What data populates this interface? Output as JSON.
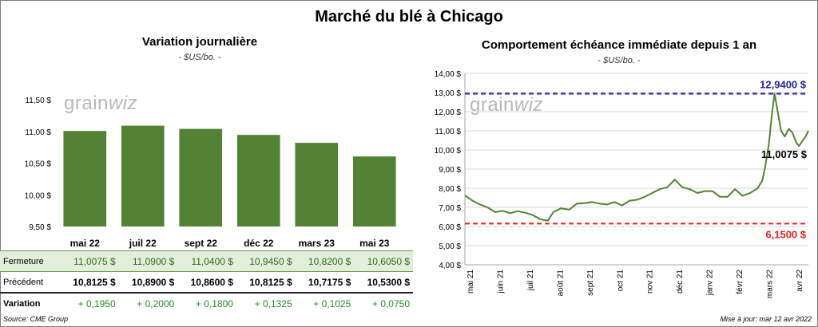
{
  "title": "Marché du blé à Chicago",
  "left_panel": {
    "title": "Variation journalière",
    "subtitle": "- $US/bo. -",
    "logo": {
      "text1": "grain",
      "text2": "wiz"
    }
  },
  "right_panel": {
    "title": "Comportement échéance immédiate depuis 1 an",
    "subtitle": "- $US/bo. -",
    "logo": {
      "text1": "grain",
      "text2": "wiz"
    }
  },
  "table": {
    "row_labels": {
      "close": "Fermeture",
      "previous": "Précédent",
      "variation": "Variation"
    },
    "close": [
      "11,0075 $",
      "11,0900 $",
      "11,0400 $",
      "10,9450 $",
      "10,8200 $",
      "10,6050 $"
    ],
    "previous": [
      "10,8125 $",
      "10,8900 $",
      "10,8600 $",
      "10,8125 $",
      "10,7175 $",
      "10,5300 $"
    ],
    "variation": [
      "+ 0,1950",
      "+ 0,2000",
      "+ 0,1800",
      "+ 0,1325",
      "+ 0,1025",
      "+ 0,0750"
    ]
  },
  "footer": {
    "source": "Source: CME Group",
    "updated": "Mise à jour: mar 12 avr 2022"
  },
  "colors": {
    "bar": "#548235",
    "line": "#548235",
    "high": "#1f1fa0",
    "low": "#e32020",
    "close_row": "#e3efda"
  },
  "chart_data": [
    {
      "type": "bar",
      "title": "Variation journalière",
      "subtitle": "- $US/bo. -",
      "categories": [
        "mai 22",
        "juil 22",
        "sept 22",
        "déc 22",
        "mars 23",
        "mai 23"
      ],
      "values": [
        11.0075,
        11.09,
        11.04,
        10.945,
        10.82,
        10.605
      ],
      "ylim": [
        9.5,
        11.5
      ],
      "yticks": [
        9.5,
        10.0,
        10.5,
        11.0,
        11.5
      ],
      "ytick_labels": [
        "9,50 $",
        "10,00 $",
        "10,50 $",
        "11,00 $",
        "11,50 $"
      ],
      "grid": false
    },
    {
      "type": "line",
      "title": "Comportement échéance immédiate depuis 1 an",
      "subtitle": "- $US/bo. -",
      "x_labels": [
        "mai 21",
        "juin 21",
        "juil 21",
        "août 21",
        "sept 21",
        "oct 21",
        "nov 21",
        "déc 21",
        "janv 22",
        "févr 22",
        "mars 22",
        "avr 22"
      ],
      "ylim": [
        4.0,
        14.0
      ],
      "yticks": [
        4,
        5,
        6,
        7,
        8,
        9,
        10,
        11,
        12,
        13,
        14
      ],
      "ytick_labels": [
        "4,00 $",
        "5,00 $",
        "6,00 $",
        "7,00 $",
        "8,00 $",
        "9,00 $",
        "10,00 $",
        "11,00 $",
        "12,00 $",
        "13,00 $",
        "14,00 $"
      ],
      "grid": true,
      "series": [
        {
          "points": [
            [
              "2021-04-12",
              7.62
            ],
            [
              "2021-04-20",
              7.35
            ],
            [
              "2021-04-28",
              7.15
            ],
            [
              "2021-05-06",
              7.0
            ],
            [
              "2021-05-14",
              6.75
            ],
            [
              "2021-05-22",
              6.82
            ],
            [
              "2021-05-30",
              6.7
            ],
            [
              "2021-06-07",
              6.8
            ],
            [
              "2021-06-15",
              6.72
            ],
            [
              "2021-06-23",
              6.6
            ],
            [
              "2021-07-01",
              6.38
            ],
            [
              "2021-07-09",
              6.3
            ],
            [
              "2021-07-15",
              6.75
            ],
            [
              "2021-07-23",
              6.95
            ],
            [
              "2021-08-01",
              6.88
            ],
            [
              "2021-08-09",
              7.2
            ],
            [
              "2021-08-17",
              7.22
            ],
            [
              "2021-08-25",
              7.28
            ],
            [
              "2021-09-02",
              7.2
            ],
            [
              "2021-09-10",
              7.15
            ],
            [
              "2021-09-18",
              7.28
            ],
            [
              "2021-09-26",
              7.1
            ],
            [
              "2021-10-04",
              7.35
            ],
            [
              "2021-10-12",
              7.4
            ],
            [
              "2021-10-20",
              7.55
            ],
            [
              "2021-10-28",
              7.75
            ],
            [
              "2021-11-05",
              7.95
            ],
            [
              "2021-11-13",
              8.05
            ],
            [
              "2021-11-21",
              8.45
            ],
            [
              "2021-11-29",
              8.05
            ],
            [
              "2021-12-07",
              7.95
            ],
            [
              "2021-12-15",
              7.75
            ],
            [
              "2021-12-23",
              7.85
            ],
            [
              "2021-12-31",
              7.85
            ],
            [
              "2022-01-08",
              7.55
            ],
            [
              "2022-01-16",
              7.55
            ],
            [
              "2022-01-24",
              7.95
            ],
            [
              "2022-02-01",
              7.6
            ],
            [
              "2022-02-09",
              7.75
            ],
            [
              "2022-02-17",
              8.0
            ],
            [
              "2022-02-22",
              8.4
            ],
            [
              "2022-02-25",
              9.1
            ],
            [
              "2022-03-01",
              10.3
            ],
            [
              "2022-03-04",
              11.8
            ],
            [
              "2022-03-07",
              12.94
            ],
            [
              "2022-03-10",
              12.1
            ],
            [
              "2022-03-14",
              11.0
            ],
            [
              "2022-03-18",
              10.7
            ],
            [
              "2022-03-22",
              11.1
            ],
            [
              "2022-03-26",
              10.9
            ],
            [
              "2022-03-30",
              10.4
            ],
            [
              "2022-04-02",
              10.2
            ],
            [
              "2022-04-06",
              10.5
            ],
            [
              "2022-04-09",
              10.7
            ],
            [
              "2022-04-12",
              11.0075
            ]
          ]
        }
      ],
      "reference_lines": [
        {
          "value": 12.94,
          "label": "12,9400 $",
          "color": "#1f1fa0"
        },
        {
          "value": 6.15,
          "label": "6,1500 $",
          "color": "#e32020"
        }
      ],
      "annotations": [
        {
          "value": 11.0075,
          "label": "11,0075 $"
        }
      ]
    }
  ]
}
